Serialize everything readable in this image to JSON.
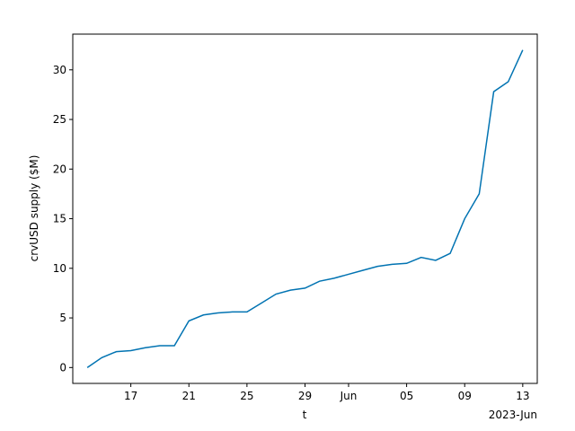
{
  "chart_data": {
    "type": "line",
    "xlabel": "t",
    "ylabel": "crvUSD supply ($M)",
    "x_offset_label": "2023-Jun",
    "x": [
      "2023-05-14",
      "2023-05-15",
      "2023-05-16",
      "2023-05-17",
      "2023-05-18",
      "2023-05-19",
      "2023-05-20",
      "2023-05-21",
      "2023-05-22",
      "2023-05-23",
      "2023-05-24",
      "2023-05-25",
      "2023-05-26",
      "2023-05-27",
      "2023-05-28",
      "2023-05-29",
      "2023-05-30",
      "2023-05-31",
      "2023-06-01",
      "2023-06-02",
      "2023-06-03",
      "2023-06-04",
      "2023-06-05",
      "2023-06-06",
      "2023-06-07",
      "2023-06-08",
      "2023-06-09",
      "2023-06-10",
      "2023-06-11",
      "2023-06-12",
      "2023-06-13"
    ],
    "series": [
      {
        "name": "crvUSD supply",
        "color": "#0173b2",
        "values": [
          0,
          1.0,
          1.6,
          1.7,
          2.0,
          2.2,
          2.2,
          4.7,
          5.3,
          5.5,
          5.6,
          5.6,
          6.5,
          7.4,
          7.8,
          8.0,
          8.7,
          9.0,
          9.4,
          9.8,
          10.2,
          10.4,
          10.5,
          11.1,
          10.8,
          11.5,
          15.0,
          17.5,
          27.8,
          28.8,
          32.0
        ]
      }
    ],
    "xlim": [
      "2023-05-13",
      "2023-06-14"
    ],
    "xticks": [
      {
        "value": "2023-05-17",
        "label": "17"
      },
      {
        "value": "2023-05-21",
        "label": "21"
      },
      {
        "value": "2023-05-25",
        "label": "25"
      },
      {
        "value": "2023-05-29",
        "label": "29"
      },
      {
        "value": "2023-06-01",
        "label": "Jun"
      },
      {
        "value": "2023-06-05",
        "label": "05"
      },
      {
        "value": "2023-06-09",
        "label": "09"
      },
      {
        "value": "2023-06-13",
        "label": "13"
      }
    ],
    "ylim": [
      -1.6,
      33.6
    ],
    "yticks": [
      0,
      5,
      10,
      15,
      20,
      25,
      30
    ],
    "grid": false
  }
}
